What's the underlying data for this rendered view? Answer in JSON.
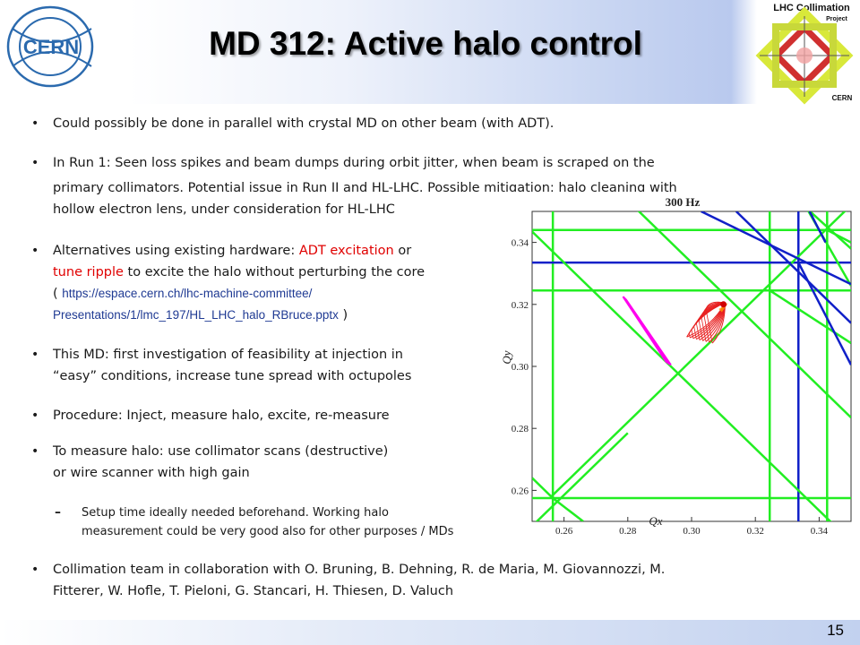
{
  "title": "MD 312: Active halo control",
  "logos": {
    "cern": "CERN",
    "collimation_line1": "LHC Collimation",
    "collimation_line2": "Project",
    "collimation_line3": "CERN"
  },
  "bullets": {
    "b1": "Could possibly be done in parallel with crystal  MD on other beam (with ADT).",
    "b2_line1": "In Run 1: Seen loss spikes and beam dumps during orbit jitter, when beam is scraped on the",
    "b2_line2": "primary collimators. Potential issue in Run II and HL-LHC. Possible mitigation: halo cleaning with",
    "b2_line3": "hollow electron lens, under consideration for HL-LHC",
    "b3_pre": "Alternatives using existing hardware: ",
    "b3_red1": "ADT excitation",
    "b3_or": " or",
    "b3_red2": "tune ripple",
    "b3_rest": " to excite the halo without perturbing the core",
    "b3_link1": "https://espace.cern.ch/lhc-machine-committee/",
    "b3_link2": "Presentations/1/lmc_197/HL_LHC_halo_RBruce.pptx",
    "b4_line1": "This MD: first investigation of feasibility at injection in",
    "b4_line2": "“easy” conditions, increase tune spread with octupoles",
    "b5": "Procedure: Inject, measure halo, excite, re-measure",
    "b6_line1": "To measure halo: use collimator scans  (destructive)",
    "b6_line2": "or wire scanner with high gain",
    "sub_line1": "Setup time ideally needed beforehand. Working halo",
    "sub_line2": "measurement could be very good also for other purposes / MDs",
    "b7_line1": "Collimation team in collaboration with O. Bruning, B. Dehning, R. de Maria, M. Giovannozzi, M.",
    "b7_line2": "Fitterer, W. Hofle, T. Pieloni, G. Stancari, H. Thiesen, D. Valuch"
  },
  "page_number": "15",
  "chart_data": {
    "type": "scatter",
    "title": "300 Hz",
    "xlabel": "Qx",
    "ylabel": "Qy",
    "xlim": [
      0.25,
      0.35
    ],
    "ylim": [
      0.25,
      0.35
    ],
    "xticks": [
      "0.26",
      "0.28",
      "0.30",
      "0.32",
      "0.34"
    ],
    "yticks": [
      "0.26",
      "0.28",
      "0.30",
      "0.32",
      "0.34"
    ],
    "colors": {
      "resonance_green": "#22ee22",
      "resonance_blue": "#1020c8",
      "footprint": "#e82020",
      "footprint_orange": "#ff9900",
      "ripple": "#ff00ee"
    },
    "working_point": [
      0.31,
      0.32
    ]
  }
}
